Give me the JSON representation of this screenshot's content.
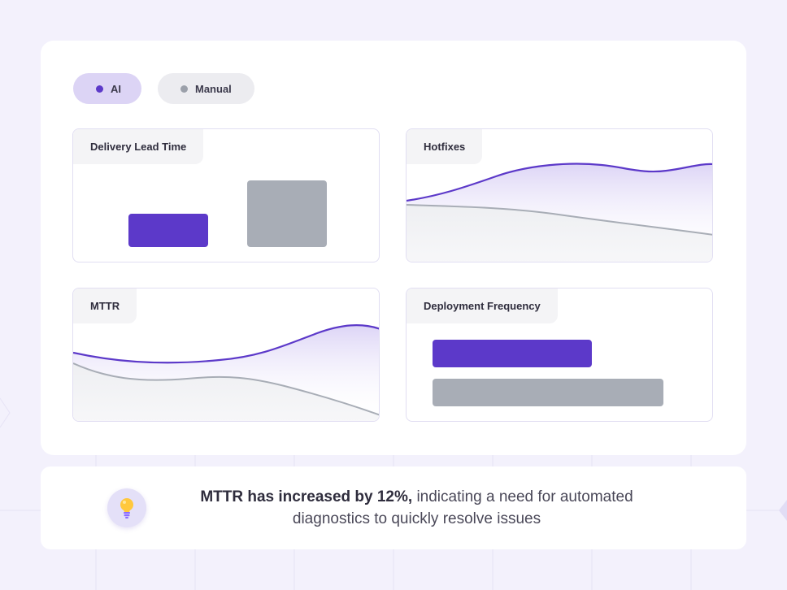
{
  "legend": {
    "ai_label": "AI",
    "manual_label": "Manual",
    "ai_color": "#5c39c9",
    "manual_color": "#a8adb6"
  },
  "panels": {
    "delivery_lead_time": {
      "title": "Delivery Lead Time",
      "chart_data": {
        "type": "bar",
        "categories": [
          "AI",
          "Manual"
        ],
        "values": [
          0.5,
          1.0
        ],
        "scale": "relative, no axes shown"
      }
    },
    "hotfixes": {
      "title": "Hotfixes",
      "chart_data": {
        "type": "area",
        "series": [
          {
            "name": "AI",
            "trend": "rising"
          },
          {
            "name": "Manual",
            "trend": "declining"
          }
        ]
      }
    },
    "mttr": {
      "title": "MTTR",
      "chart_data": {
        "type": "area",
        "series": [
          {
            "name": "AI",
            "trend": "flat then rising"
          },
          {
            "name": "Manual",
            "trend": "declining"
          }
        ]
      }
    },
    "deployment_frequency": {
      "title": "Deployment Frequency",
      "chart_data": {
        "type": "bar",
        "orientation": "horizontal",
        "categories": [
          "AI",
          "Manual"
        ],
        "values": [
          0.69,
          1.0
        ],
        "scale": "relative, no axes shown"
      }
    }
  },
  "insight": {
    "icon": "lightbulb-icon",
    "highlight": "MTTR has increased by 12%,",
    "text": " indicating a need for automated diagnostics to quickly resolve issues"
  }
}
